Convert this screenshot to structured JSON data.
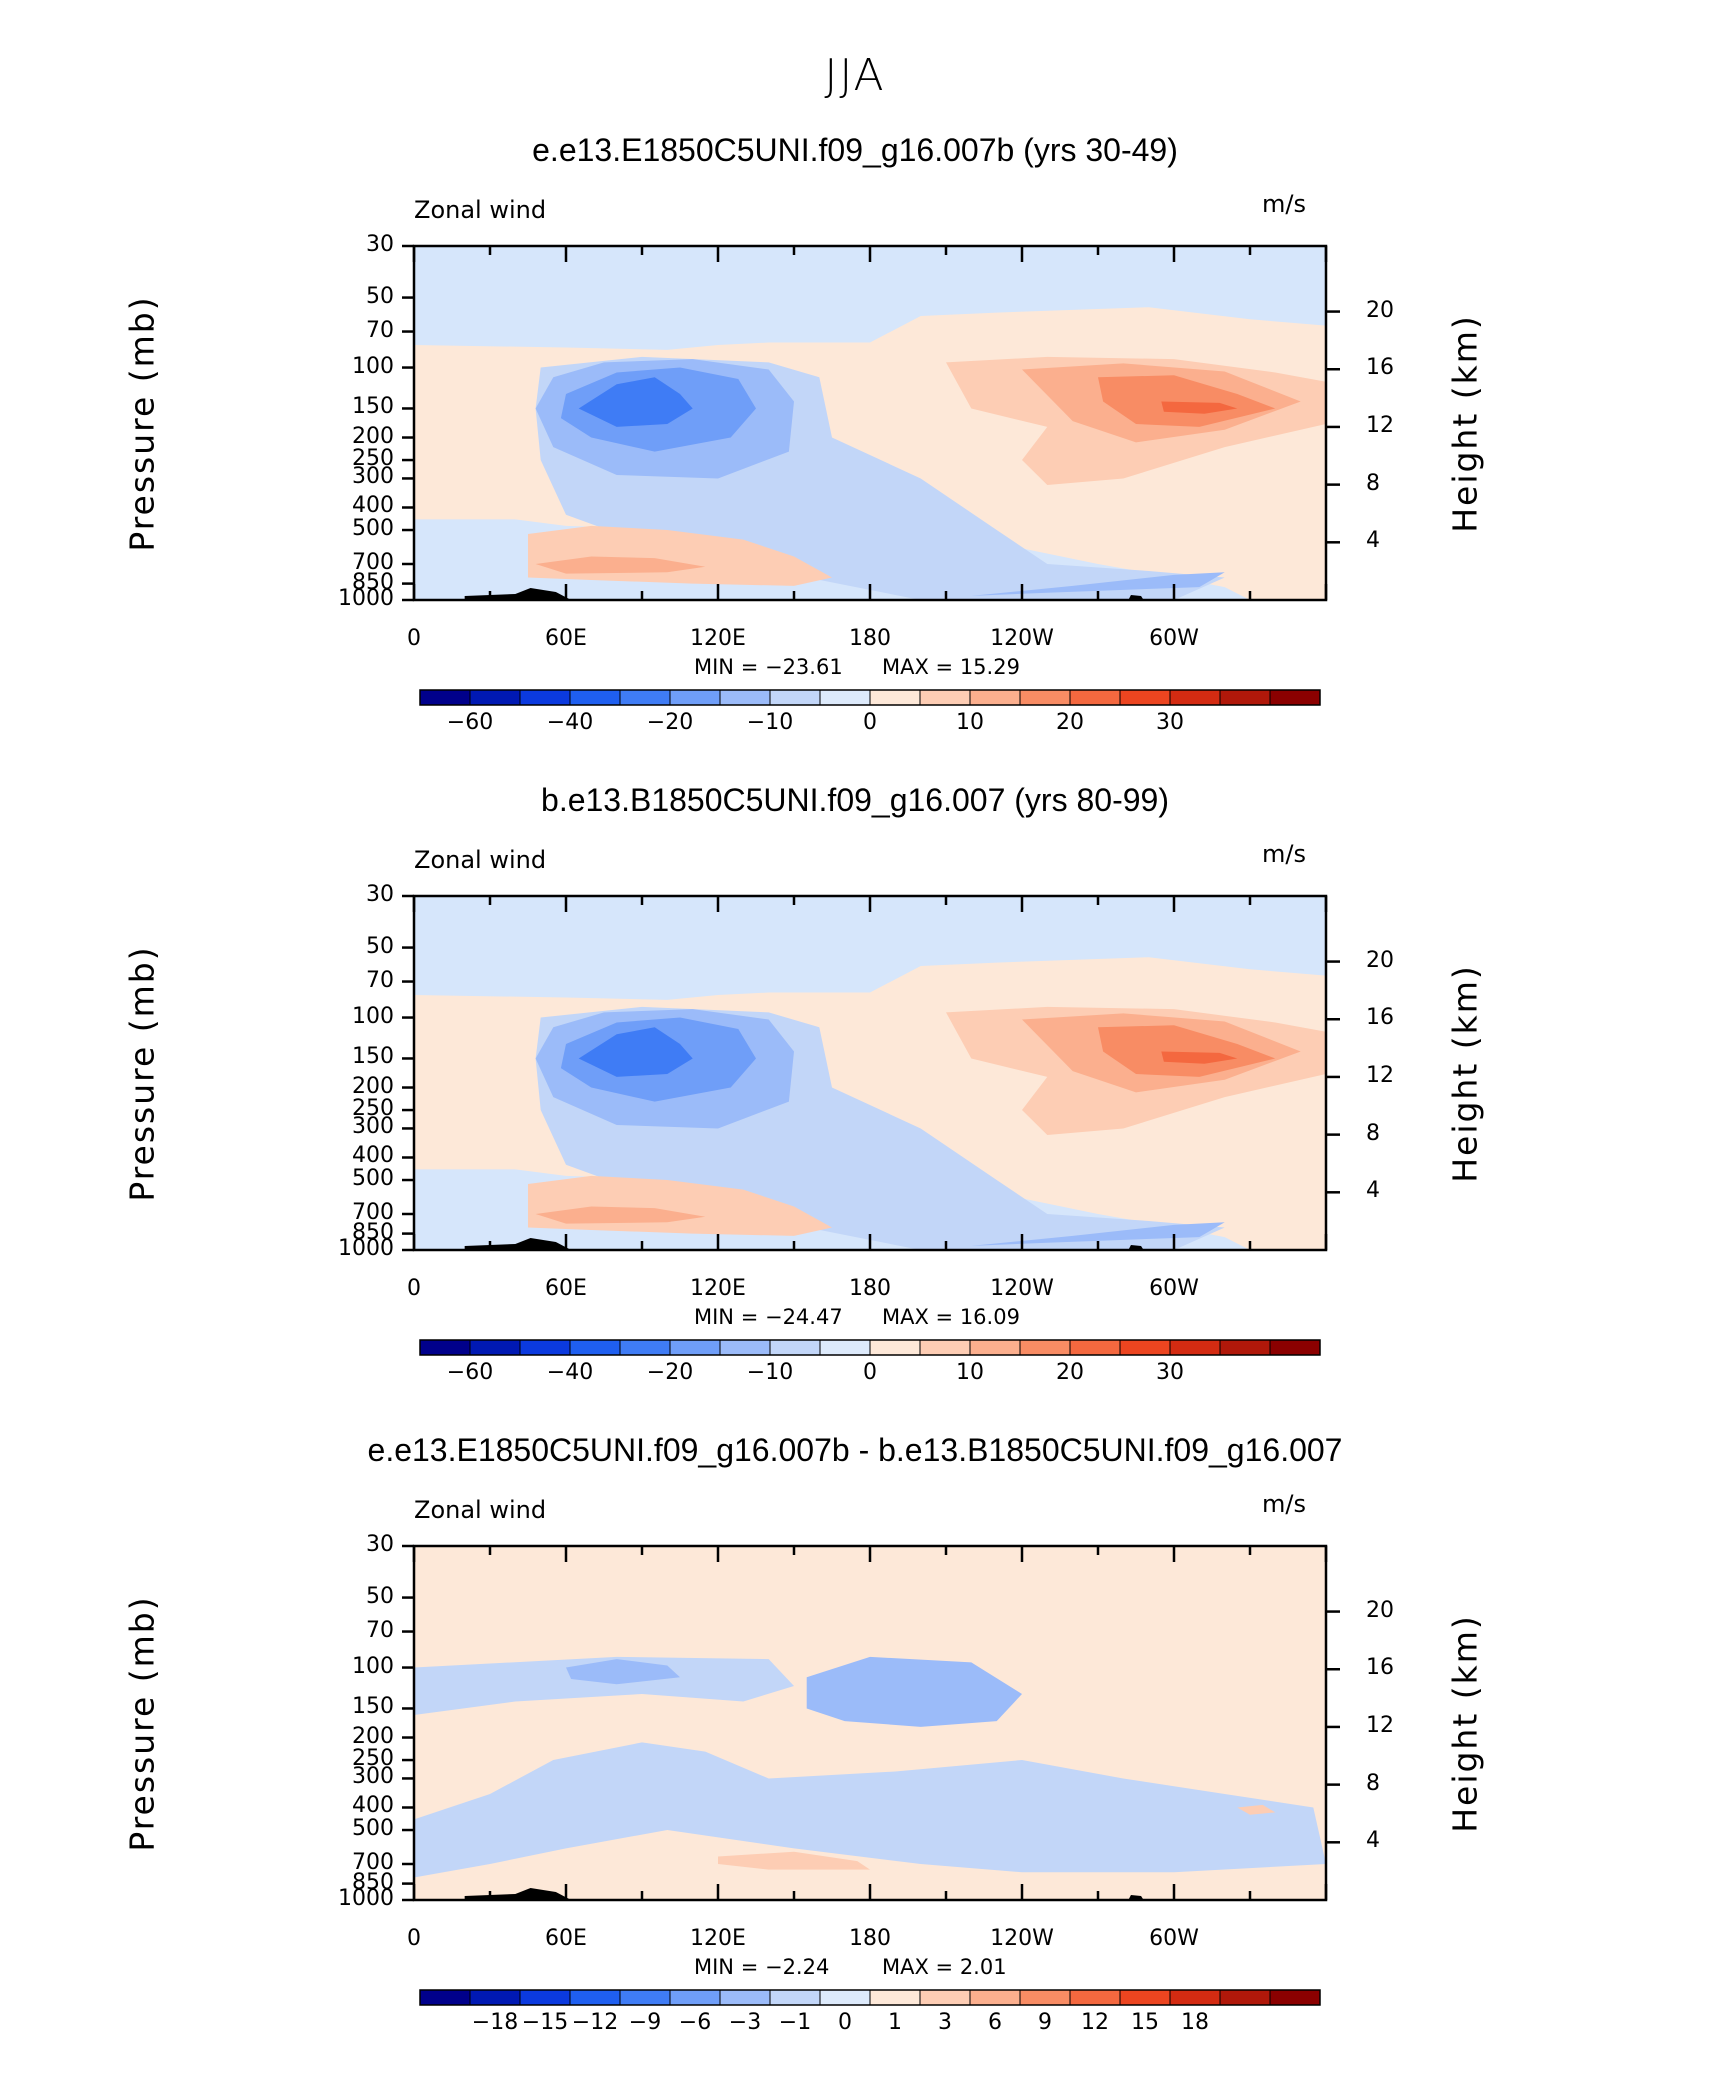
{
  "figure": {
    "title": "JJA"
  },
  "panels": [
    {
      "title": "e.e13.E1850C5UNI.f09_g16.007b (yrs 30-49)",
      "left_label": "Zonal wind",
      "units": "m/s",
      "ylabel_left": "Pressure (mb)",
      "ylabel_right": "Height (km)",
      "min_text": "MIN =  −23.61",
      "max_text": "MAX =   15.29",
      "kind": "field"
    },
    {
      "title": "b.e13.B1850C5UNI.f09_g16.007 (yrs 80-99)",
      "left_label": "Zonal wind",
      "units": "m/s",
      "ylabel_left": "Pressure (mb)",
      "ylabel_right": "Height (km)",
      "min_text": "MIN =  −24.47",
      "max_text": "MAX =   16.09",
      "kind": "field"
    },
    {
      "title": "e.e13.E1850C5UNI.f09_g16.007b - b.e13.B1850C5UNI.f09_g16.007",
      "left_label": "Zonal wind",
      "units": "m/s",
      "ylabel_left": "Pressure (mb)",
      "ylabel_right": "Height (km)",
      "min_text": "MIN =   −2.24",
      "max_text": "MAX =    2.01",
      "kind": "diff"
    }
  ],
  "chart_data": [
    {
      "type": "heatmap",
      "title": "e.e13.E1850C5UNI.f09_g16.007b (yrs 30-49)",
      "variable": "Zonal wind",
      "units": "m/s",
      "x_ticks": [
        "0",
        "60E",
        "120E",
        "180",
        "120W",
        "60W"
      ],
      "x_values_deg": [
        0,
        60,
        120,
        180,
        240,
        300
      ],
      "xlim": [
        0,
        360
      ],
      "y_ticks": [
        "30",
        "50",
        "70",
        "100",
        "150",
        "200",
        "250",
        "300",
        "400",
        "500",
        "700",
        "850",
        "1000"
      ],
      "y_values_mb": [
        30,
        50,
        70,
        100,
        150,
        200,
        250,
        300,
        400,
        500,
        700,
        850,
        1000
      ],
      "ylim_mb": [
        1000,
        30
      ],
      "height_ticks": [
        "4",
        "8",
        "12",
        "16",
        "20"
      ],
      "height_values_km": [
        4,
        8,
        12,
        16,
        20
      ],
      "min": -23.61,
      "max": 15.29,
      "colorbar_labels": [
        "−60",
        "−40",
        "−20",
        "−10",
        "0",
        "10",
        "20",
        "30"
      ],
      "colorbar_colors": [
        "#00008b",
        "#0019b3",
        "#0b3adf",
        "#1f5ff0",
        "#3f7cf5",
        "#6f9ef8",
        "#9bbbf9",
        "#c2d6f8",
        "#ddeafb",
        "#fde8d8",
        "#fdcdb4",
        "#fbaf8e",
        "#f88c64",
        "#f4683f",
        "#ec4520",
        "#d42b12",
        "#b0180a",
        "#8b0000"
      ]
    },
    {
      "type": "heatmap",
      "title": "b.e13.B1850C5UNI.f09_g16.007 (yrs 80-99)",
      "variable": "Zonal wind",
      "units": "m/s",
      "x_ticks": [
        "0",
        "60E",
        "120E",
        "180",
        "120W",
        "60W"
      ],
      "x_values_deg": [
        0,
        60,
        120,
        180,
        240,
        300
      ],
      "xlim": [
        0,
        360
      ],
      "y_ticks": [
        "30",
        "50",
        "70",
        "100",
        "150",
        "200",
        "250",
        "300",
        "400",
        "500",
        "700",
        "850",
        "1000"
      ],
      "y_values_mb": [
        30,
        50,
        70,
        100,
        150,
        200,
        250,
        300,
        400,
        500,
        700,
        850,
        1000
      ],
      "ylim_mb": [
        1000,
        30
      ],
      "height_ticks": [
        "4",
        "8",
        "12",
        "16",
        "20"
      ],
      "height_values_km": [
        4,
        8,
        12,
        16,
        20
      ],
      "min": -24.47,
      "max": 16.09,
      "colorbar_labels": [
        "−60",
        "−40",
        "−20",
        "−10",
        "0",
        "10",
        "20",
        "30"
      ],
      "colorbar_colors": [
        "#00008b",
        "#0019b3",
        "#0b3adf",
        "#1f5ff0",
        "#3f7cf5",
        "#6f9ef8",
        "#9bbbf9",
        "#c2d6f8",
        "#ddeafb",
        "#fde8d8",
        "#fdcdb4",
        "#fbaf8e",
        "#f88c64",
        "#f4683f",
        "#ec4520",
        "#d42b12",
        "#b0180a",
        "#8b0000"
      ]
    },
    {
      "type": "heatmap",
      "title": "e.e13.E1850C5UNI.f09_g16.007b - b.e13.B1850C5UNI.f09_g16.007",
      "variable": "Zonal wind",
      "units": "m/s",
      "x_ticks": [
        "0",
        "60E",
        "120E",
        "180",
        "120W",
        "60W"
      ],
      "x_values_deg": [
        0,
        60,
        120,
        180,
        240,
        300
      ],
      "xlim": [
        0,
        360
      ],
      "y_ticks": [
        "30",
        "50",
        "70",
        "100",
        "150",
        "200",
        "250",
        "300",
        "400",
        "500",
        "700",
        "850",
        "1000"
      ],
      "y_values_mb": [
        30,
        50,
        70,
        100,
        150,
        200,
        250,
        300,
        400,
        500,
        700,
        850,
        1000
      ],
      "ylim_mb": [
        1000,
        30
      ],
      "height_ticks": [
        "4",
        "8",
        "12",
        "16",
        "20"
      ],
      "height_values_km": [
        4,
        8,
        12,
        16,
        20
      ],
      "min": -2.24,
      "max": 2.01,
      "colorbar_labels": [
        "−18",
        "−15",
        "−12",
        "−9",
        "−6",
        "−3",
        "−1",
        "0",
        "1",
        "3",
        "6",
        "9",
        "12",
        "15",
        "18"
      ],
      "colorbar_colors": [
        "#00008b",
        "#0019b3",
        "#0b3adf",
        "#1f5ff0",
        "#3f7cf5",
        "#6f9ef8",
        "#9bbbf9",
        "#c2d6f8",
        "#ddeafb",
        "#fde8d8",
        "#fdcdb4",
        "#fbaf8e",
        "#f88c64",
        "#f4683f",
        "#ec4520",
        "#d42b12",
        "#b0180a",
        "#8b0000"
      ]
    }
  ]
}
